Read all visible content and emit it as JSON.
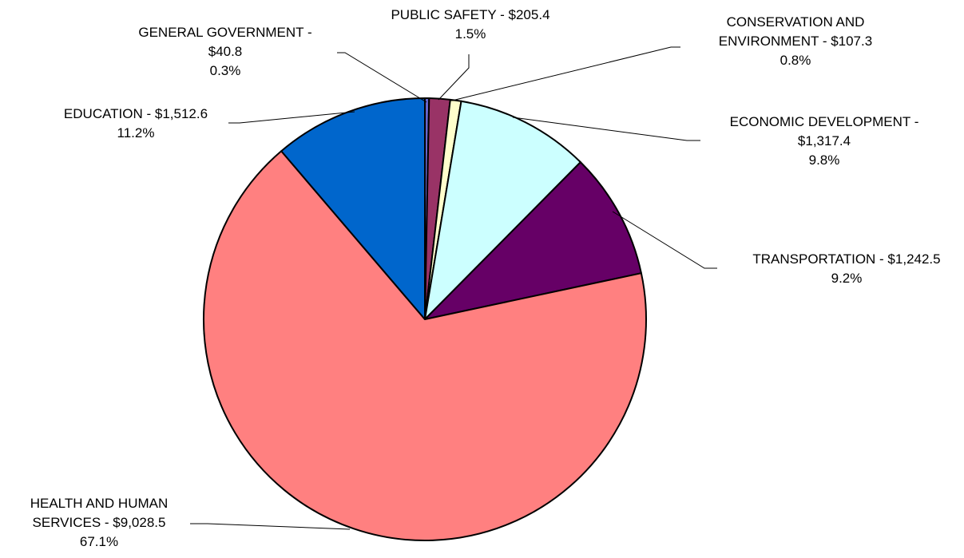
{
  "chart_data": {
    "type": "pie",
    "title": "",
    "start_angle_deg": 0,
    "direction": "clockwise",
    "legend": "none",
    "slices": [
      {
        "label": "GENERAL GOVERNMENT",
        "label_lines": [
          "GENERAL GOVERNMENT -",
          "$40.8",
          "0.3%"
        ],
        "value": 40.8,
        "percent": "0.3%",
        "color": "#6666CC"
      },
      {
        "label": "PUBLIC SAFETY",
        "label_lines": [
          "PUBLIC SAFETY - $205.4",
          "1.5%"
        ],
        "value": 205.4,
        "percent": "1.5%",
        "color": "#993366"
      },
      {
        "label": "CONSERVATION AND ENVIRONMENT",
        "label_lines": [
          "CONSERVATION AND",
          "ENVIRONMENT - $107.3",
          "0.8%"
        ],
        "value": 107.3,
        "percent": "0.8%",
        "color": "#FFFFCC"
      },
      {
        "label": "ECONOMIC DEVELOPMENT",
        "label_lines": [
          "ECONOMIC DEVELOPMENT -",
          "$1,317.4",
          "9.8%"
        ],
        "value": 1317.4,
        "percent": "9.8%",
        "color": "#CCFFFF"
      },
      {
        "label": "TRANSPORTATION",
        "label_lines": [
          "TRANSPORTATION - $1,242.5",
          "9.2%"
        ],
        "value": 1242.5,
        "percent": "9.2%",
        "color": "#660066"
      },
      {
        "label": "HEALTH AND HUMAN SERVICES",
        "label_lines": [
          "HEALTH AND HUMAN",
          "SERVICES - $9,028.5",
          "67.1%"
        ],
        "value": 9028.5,
        "percent": "67.1%",
        "color": "#FF8080"
      },
      {
        "label": "EDUCATION",
        "label_lines": [
          "EDUCATION - $1,512.6",
          "11.2%"
        ],
        "value": 1512.6,
        "percent": "11.2%",
        "color": "#0066CC"
      }
    ]
  }
}
